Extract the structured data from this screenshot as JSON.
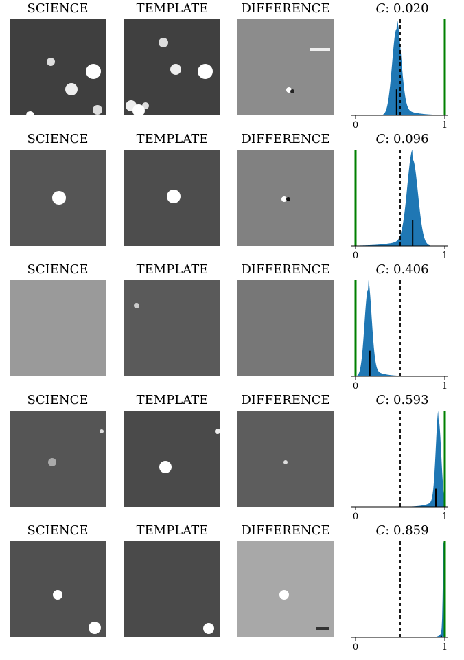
{
  "labels": {
    "science": "SCIENCE",
    "template": "TEMPLATE",
    "difference": "DIFFERENCE",
    "c_symbol": "C",
    "c_sep": ": "
  },
  "colors": {
    "fill": "#1f77b4",
    "green": "#008000",
    "median": "#000000"
  },
  "chart_data": [
    {
      "type": "area",
      "C": "0.020",
      "xlim": [
        0,
        1
      ],
      "xticks": [
        "0",
        "1"
      ],
      "peak": 0.46,
      "width": 0.05,
      "median": 0.46,
      "green": 1.0,
      "dashed": 0.5
    },
    {
      "type": "area",
      "C": "0.096",
      "xlim": [
        0,
        1
      ],
      "xticks": [
        "0",
        "1"
      ],
      "peak": 0.64,
      "width": 0.06,
      "median": 0.64,
      "green": 0.0,
      "dashed": 0.5
    },
    {
      "type": "area",
      "C": "0.406",
      "xlim": [
        0,
        1
      ],
      "xticks": [
        "0",
        "1"
      ],
      "peak": 0.14,
      "width": 0.04,
      "median": 0.16,
      "green": 0.0,
      "dashed": 0.5
    },
    {
      "type": "area",
      "C": "0.593",
      "xlim": [
        0,
        1
      ],
      "xticks": [
        "0",
        "1"
      ],
      "peak": 0.93,
      "width": 0.03,
      "median": 0.9,
      "green": 1.0,
      "dashed": 0.5
    },
    {
      "type": "area",
      "C": "0.859",
      "xlim": [
        0,
        1
      ],
      "xticks": [
        "0",
        "1"
      ],
      "peak": 0.99,
      "width": 0.01,
      "median": 0.96,
      "green": 1.0,
      "dashed": 0.5
    }
  ]
}
